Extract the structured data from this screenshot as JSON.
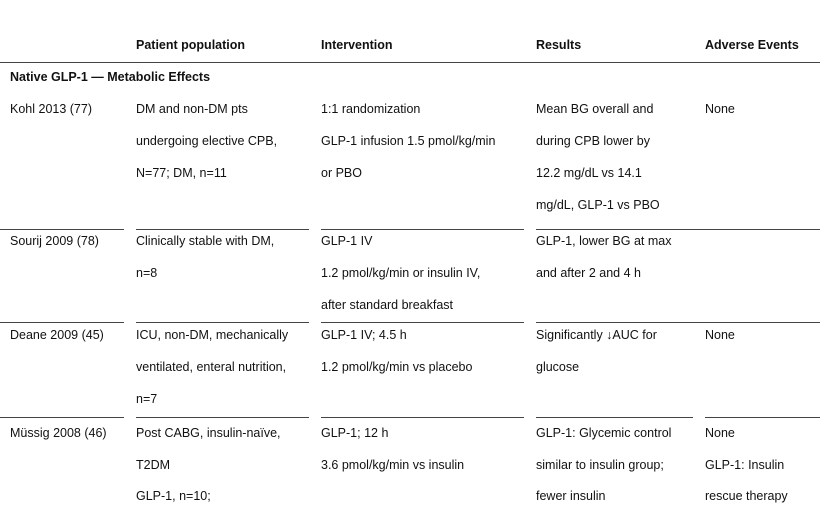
{
  "headers": {
    "study": "",
    "population": "Patient population",
    "intervention": "Intervention",
    "results": "Results",
    "adverse": "Adverse Events"
  },
  "section_title": "Native GLP-1 — Metabolic Effects",
  "rows": [
    {
      "study": "Kohl 2013 (77)",
      "population": [
        "DM and non-DM pts",
        "undergoing elective CPB,",
        "N=77; DM, n=11"
      ],
      "intervention": [
        "1:1 randomization",
        "GLP-1 infusion 1.5 pmol/kg/min",
        "or PBO"
      ],
      "results": [
        "Mean BG overall and",
        "during CPB lower by",
        "12.2 mg/dL vs 14.1",
        "mg/dL, GLP-1 vs PBO"
      ],
      "adverse": [
        "None"
      ]
    },
    {
      "study": "Sourij 2009 (78)",
      "population": [
        "Clinically stable with DM,",
        "n=8"
      ],
      "intervention": [
        "GLP-1 IV",
        "1.2 pmol/kg/min or insulin IV,",
        "after standard breakfast"
      ],
      "results": [
        "GLP-1, lower BG at max",
        "and after 2 and 4 h"
      ],
      "adverse": []
    },
    {
      "study": "Deane 2009 (45)",
      "population": [
        "ICU, non-DM, mechanically",
        "ventilated, enteral nutrition,",
        "n=7"
      ],
      "intervention": [
        "GLP-1 IV; 4.5 h",
        "1.2 pmol/kg/min vs placebo"
      ],
      "results": [
        "Significantly ↓AUC for",
        "glucose"
      ],
      "adverse": [
        "None"
      ]
    },
    {
      "study": "Müssig 2008 (46)",
      "population": [
        "Post CABG, insulin-naïve,",
        "T2DM",
        "GLP-1, n=10;"
      ],
      "intervention": [
        "GLP-1; 12 h",
        "3.6 pmol/kg/min vs insulin"
      ],
      "results": [
        "GLP-1: Glycemic control",
        "similar to insulin group;",
        "fewer insulin"
      ],
      "adverse": [
        "None",
        "GLP-1: Insulin",
        "rescue therapy"
      ]
    }
  ]
}
